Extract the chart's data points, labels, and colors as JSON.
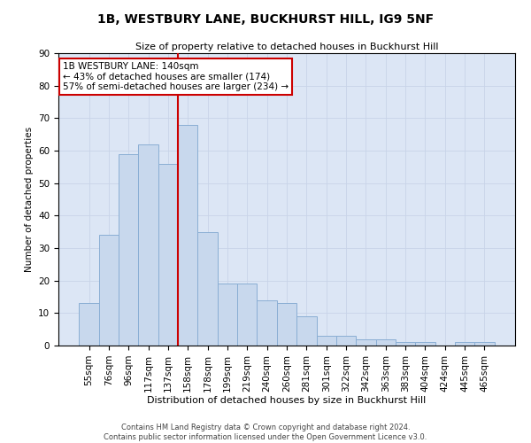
{
  "title": "1B, WESTBURY LANE, BUCKHURST HILL, IG9 5NF",
  "subtitle": "Size of property relative to detached houses in Buckhurst Hill",
  "xlabel": "Distribution of detached houses by size in Buckhurst Hill",
  "ylabel": "Number of detached properties",
  "categories": [
    "55sqm",
    "76sqm",
    "96sqm",
    "117sqm",
    "137sqm",
    "158sqm",
    "178sqm",
    "199sqm",
    "219sqm",
    "240sqm",
    "260sqm",
    "281sqm",
    "301sqm",
    "322sqm",
    "342sqm",
    "363sqm",
    "383sqm",
    "404sqm",
    "424sqm",
    "445sqm",
    "465sqm"
  ],
  "values": [
    13,
    34,
    59,
    62,
    56,
    68,
    35,
    19,
    19,
    14,
    13,
    9,
    3,
    3,
    2,
    2,
    1,
    1,
    0,
    1,
    1
  ],
  "bar_color": "#c8d8ed",
  "bar_edge_color": "#8aaed4",
  "vline_x": 4.5,
  "vline_color": "#cc0000",
  "annotation_text": "1B WESTBURY LANE: 140sqm\n← 43% of detached houses are smaller (174)\n57% of semi-detached houses are larger (234) →",
  "annotation_box_facecolor": "white",
  "annotation_box_edgecolor": "#cc0000",
  "grid_color": "#c8d4e8",
  "ax_facecolor": "#dce6f5",
  "footer1": "Contains HM Land Registry data © Crown copyright and database right 2024.",
  "footer2": "Contains public sector information licensed under the Open Government Licence v3.0.",
  "ylim": [
    0,
    90
  ],
  "yticks": [
    0,
    10,
    20,
    30,
    40,
    50,
    60,
    70,
    80,
    90
  ]
}
